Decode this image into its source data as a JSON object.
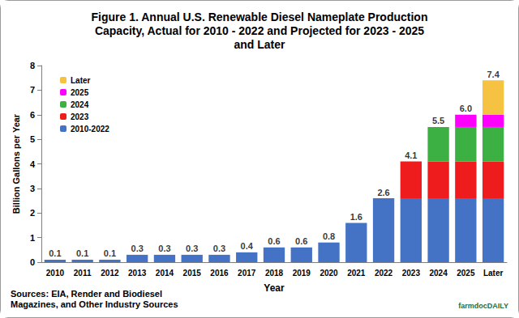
{
  "chart_data": {
    "type": "bar",
    "title": "Figure 1. Annual U.S. Renewable Diesel Nameplate Production\nCapacity, Actual for 2010 - 2022 and Projected for 2023 - 2025\nand Later",
    "x_label": "Year",
    "y_label": "Billion Gallons per Year",
    "categories": [
      "2010",
      "2011",
      "2012",
      "2013",
      "2014",
      "2015",
      "2016",
      "2017",
      "2018",
      "2019",
      "2020",
      "2021",
      "2022",
      "2023",
      "2024",
      "2025",
      "Later"
    ],
    "series": [
      {
        "name": "2010-2022",
        "color": "#4472c4",
        "values": [
          0.1,
          0.1,
          0.1,
          0.3,
          0.3,
          0.3,
          0.3,
          0.4,
          0.6,
          0.6,
          0.8,
          1.6,
          2.6,
          2.6,
          2.6,
          2.6,
          2.6
        ]
      },
      {
        "name": "2023",
        "color": "#ee1c1c",
        "values": [
          null,
          null,
          null,
          null,
          null,
          null,
          null,
          null,
          null,
          null,
          null,
          null,
          null,
          1.5,
          1.5,
          1.5,
          1.5
        ]
      },
      {
        "name": "2024",
        "color": "#3cb043",
        "values": [
          null,
          null,
          null,
          null,
          null,
          null,
          null,
          null,
          null,
          null,
          null,
          null,
          null,
          null,
          1.4,
          1.4,
          1.4
        ]
      },
      {
        "name": "2025",
        "color": "#ff00ff",
        "values": [
          null,
          null,
          null,
          null,
          null,
          null,
          null,
          null,
          null,
          null,
          null,
          null,
          null,
          null,
          null,
          0.5,
          0.5
        ]
      },
      {
        "name": "Later",
        "color": "#f5c242",
        "values": [
          null,
          null,
          null,
          null,
          null,
          null,
          null,
          null,
          null,
          null,
          null,
          null,
          null,
          null,
          null,
          null,
          1.4
        ]
      }
    ],
    "totals": [
      0.1,
      0.1,
      0.1,
      0.3,
      0.3,
      0.3,
      0.3,
      0.4,
      0.6,
      0.6,
      0.8,
      1.6,
      2.6,
      4.1,
      5.5,
      6.0,
      7.4
    ],
    "total_labels": [
      "0.1",
      "0.1",
      "0.1",
      "0.3",
      "0.3",
      "0.3",
      "0.3",
      "0.4",
      "0.6",
      "0.6",
      "0.8",
      "1.6",
      "2.6",
      "4.1",
      "5.5",
      "6.0",
      "7.4"
    ],
    "stacked": true,
    "ylim": [
      0,
      8
    ],
    "yticks": [
      0,
      1,
      2,
      3,
      4,
      5,
      6,
      7,
      8
    ],
    "grid": false,
    "legend": "upper left",
    "annotations": [
      "Sources: EIA, Render and Biodiesel\nMagazines, and Other Industry Sources",
      "farmdocDAILY"
    ]
  }
}
